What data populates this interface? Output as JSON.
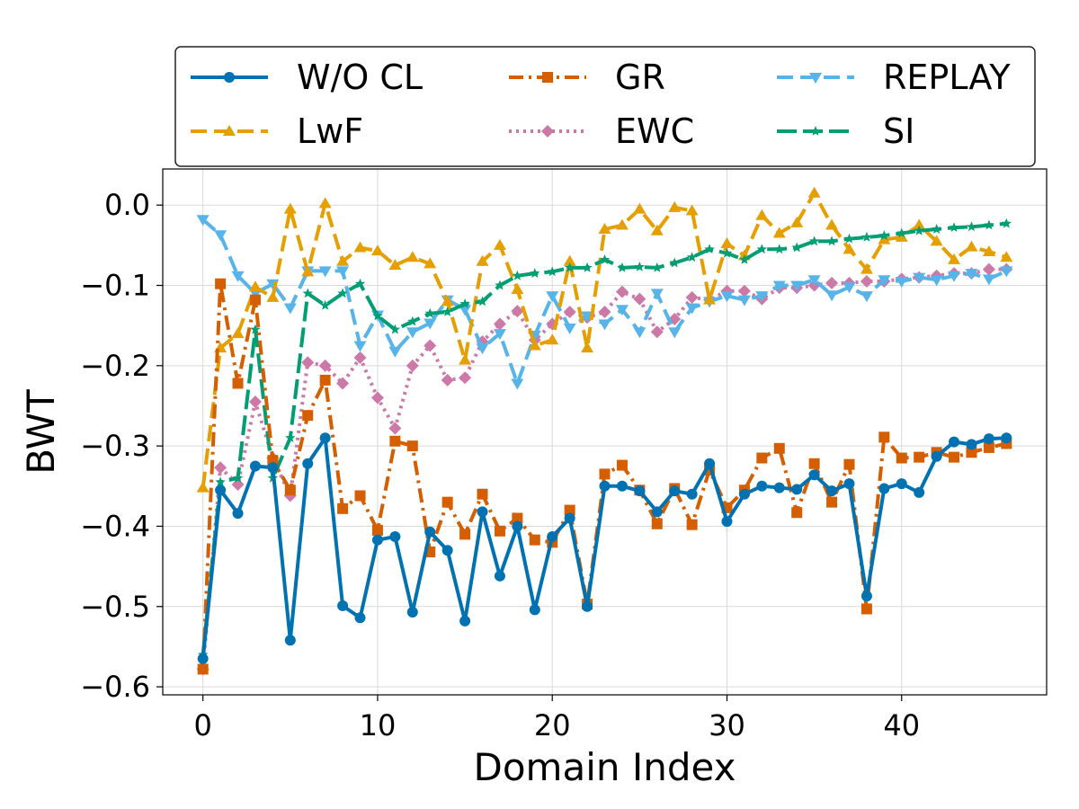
{
  "chart_data": {
    "type": "line",
    "title": "",
    "xlabel": "Domain Index",
    "ylabel": "BWT",
    "xlim": [
      -2.3,
      48.3
    ],
    "ylim": [
      -0.61,
      0.045
    ],
    "xticks": [
      0,
      10,
      20,
      30,
      40
    ],
    "xtick_labels": [
      "0",
      "10",
      "20",
      "30",
      "40"
    ],
    "yticks": [
      0.0,
      -0.1,
      -0.2,
      -0.3,
      -0.4,
      -0.5,
      -0.6
    ],
    "ytick_labels": [
      "0.0",
      "−0.1",
      "−0.2",
      "−0.3",
      "−0.4",
      "−0.5",
      "−0.6"
    ],
    "grid": true,
    "legend_position": "top, above plot",
    "x": [
      0,
      1,
      2,
      3,
      4,
      5,
      6,
      7,
      8,
      9,
      10,
      11,
      12,
      13,
      14,
      15,
      16,
      17,
      18,
      19,
      20,
      21,
      22,
      23,
      24,
      25,
      26,
      27,
      28,
      29,
      30,
      31,
      32,
      33,
      34,
      35,
      36,
      37,
      38,
      39,
      40,
      41,
      42,
      43,
      44,
      45,
      46
    ],
    "series": [
      {
        "name": "W/O CL",
        "color": "#0072b2",
        "dash": "solid",
        "marker": "circle",
        "values": [
          -0.565,
          -0.355,
          -0.384,
          -0.325,
          -0.327,
          -0.542,
          -0.322,
          -0.29,
          -0.499,
          -0.514,
          -0.417,
          -0.413,
          -0.507,
          -0.407,
          -0.43,
          -0.518,
          -0.382,
          -0.462,
          -0.4,
          -0.504,
          -0.413,
          -0.39,
          -0.5,
          -0.35,
          -0.35,
          -0.356,
          -0.382,
          -0.356,
          -0.36,
          -0.322,
          -0.394,
          -0.36,
          -0.35,
          -0.352,
          -0.354,
          -0.336,
          -0.356,
          -0.347,
          -0.487,
          -0.353,
          -0.347,
          -0.358,
          -0.313,
          -0.295,
          -0.298,
          -0.291,
          -0.29
        ]
      },
      {
        "name": "GR",
        "color": "#d55e00",
        "dash": "dashdot",
        "marker": "square",
        "values": [
          -0.578,
          -0.098,
          -0.222,
          -0.118,
          -0.318,
          -0.355,
          -0.262,
          -0.218,
          -0.378,
          -0.362,
          -0.405,
          -0.294,
          -0.3,
          -0.432,
          -0.37,
          -0.41,
          -0.36,
          -0.406,
          -0.39,
          -0.417,
          -0.42,
          -0.38,
          -0.497,
          -0.335,
          -0.324,
          -0.355,
          -0.397,
          -0.353,
          -0.398,
          -0.33,
          -0.377,
          -0.355,
          -0.315,
          -0.303,
          -0.383,
          -0.322,
          -0.37,
          -0.323,
          -0.503,
          -0.289,
          -0.315,
          -0.314,
          -0.308,
          -0.314,
          -0.308,
          -0.302,
          -0.297
        ]
      },
      {
        "name": "REPLAY",
        "color": "#56b4e9",
        "dash": "dashed",
        "marker": "triangle-down",
        "values": [
          -0.018,
          -0.037,
          -0.088,
          -0.11,
          -0.098,
          -0.128,
          -0.082,
          -0.082,
          -0.082,
          -0.175,
          -0.137,
          -0.182,
          -0.158,
          -0.147,
          -0.118,
          -0.13,
          -0.178,
          -0.16,
          -0.222,
          -0.162,
          -0.113,
          -0.153,
          -0.138,
          -0.148,
          -0.13,
          -0.158,
          -0.11,
          -0.158,
          -0.128,
          -0.12,
          -0.113,
          -0.118,
          -0.113,
          -0.1,
          -0.1,
          -0.093,
          -0.112,
          -0.102,
          -0.113,
          -0.093,
          -0.095,
          -0.09,
          -0.093,
          -0.088,
          -0.085,
          -0.092,
          -0.082
        ]
      },
      {
        "name": "LwF",
        "color": "#e69f00",
        "dash": "dashed",
        "marker": "triangle-up",
        "values": [
          -0.352,
          -0.178,
          -0.16,
          -0.102,
          -0.115,
          -0.005,
          -0.083,
          0.002,
          -0.07,
          -0.053,
          -0.057,
          -0.075,
          -0.065,
          -0.073,
          -0.12,
          -0.193,
          -0.07,
          -0.05,
          -0.105,
          -0.175,
          -0.168,
          -0.07,
          -0.178,
          -0.03,
          -0.025,
          -0.005,
          -0.032,
          -0.003,
          -0.007,
          -0.118,
          -0.048,
          -0.063,
          -0.013,
          -0.035,
          -0.022,
          0.015,
          -0.025,
          -0.055,
          -0.08,
          -0.043,
          -0.04,
          -0.025,
          -0.045,
          -0.068,
          -0.052,
          -0.058,
          -0.065
        ]
      },
      {
        "name": "EWC",
        "color": "#cc79a7",
        "dash": "dotted",
        "marker": "diamond",
        "values": [
          -0.578,
          -0.327,
          -0.348,
          -0.245,
          -0.315,
          -0.362,
          -0.196,
          -0.2,
          -0.222,
          -0.19,
          -0.24,
          -0.278,
          -0.2,
          -0.175,
          -0.218,
          -0.215,
          -0.17,
          -0.148,
          -0.132,
          -0.168,
          -0.148,
          -0.133,
          -0.14,
          -0.133,
          -0.108,
          -0.117,
          -0.158,
          -0.142,
          -0.115,
          -0.118,
          -0.107,
          -0.107,
          -0.117,
          -0.103,
          -0.103,
          -0.1,
          -0.097,
          -0.097,
          -0.095,
          -0.095,
          -0.092,
          -0.09,
          -0.088,
          -0.085,
          -0.085,
          -0.08,
          -0.08
        ]
      },
      {
        "name": "SI",
        "color": "#009e73",
        "dash": "longdash",
        "marker": "star",
        "values": [
          -0.56,
          -0.345,
          -0.34,
          -0.155,
          -0.34,
          -0.29,
          -0.11,
          -0.125,
          -0.11,
          -0.098,
          -0.138,
          -0.155,
          -0.145,
          -0.135,
          -0.133,
          -0.123,
          -0.12,
          -0.1,
          -0.088,
          -0.085,
          -0.083,
          -0.078,
          -0.078,
          -0.068,
          -0.078,
          -0.077,
          -0.078,
          -0.072,
          -0.065,
          -0.055,
          -0.06,
          -0.068,
          -0.055,
          -0.055,
          -0.053,
          -0.045,
          -0.045,
          -0.042,
          -0.04,
          -0.038,
          -0.035,
          -0.032,
          -0.03,
          -0.028,
          -0.027,
          -0.025,
          -0.023
        ]
      }
    ],
    "legend_order": [
      "W/O CL",
      "GR",
      "REPLAY",
      "LwF",
      "EWC",
      "SI"
    ]
  }
}
